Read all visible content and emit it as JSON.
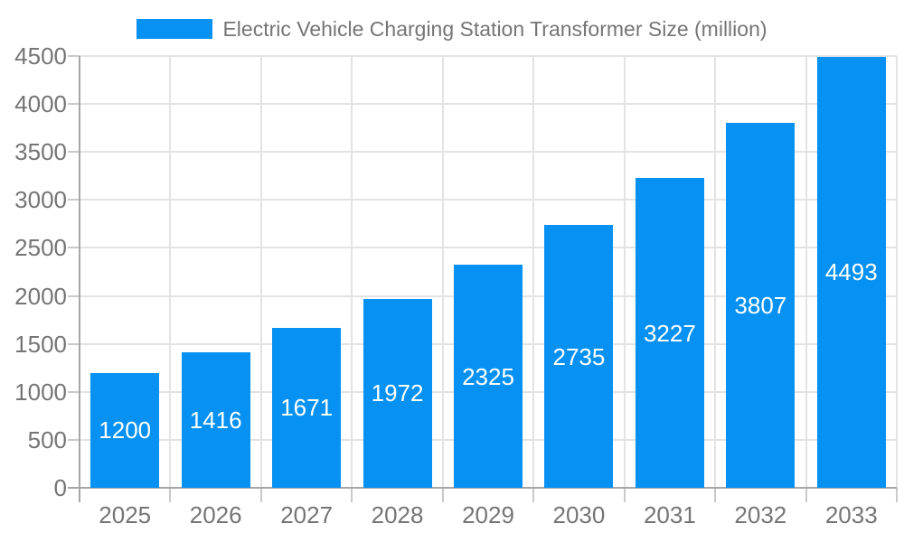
{
  "legend": {
    "series_label": "Electric Vehicle Charging Station Transformer Size (million)"
  },
  "chart_data": {
    "type": "bar",
    "title": "Electric Vehicle Charging Station Transformer Size (million)",
    "categories": [
      "2025",
      "2026",
      "2027",
      "2028",
      "2029",
      "2030",
      "2031",
      "2032",
      "2033"
    ],
    "values": [
      1200,
      1416,
      1671,
      1972,
      2325,
      2735,
      3227,
      3807,
      4493
    ],
    "xlabel": "",
    "ylabel": "",
    "ylim": [
      0,
      4500
    ],
    "ytick_step": 500,
    "yticks": [
      0,
      500,
      1000,
      1500,
      2000,
      2500,
      3000,
      3500,
      4000,
      4500
    ],
    "grid": true,
    "legend_position": "top-center",
    "colors": {
      "bar": "#0791f3",
      "value_label": "#ffffff",
      "axis_text": "#757575",
      "gridline": "#e3e3e3",
      "axis_line": "#a6a6a6",
      "tick": "#c9c9c9"
    }
  }
}
